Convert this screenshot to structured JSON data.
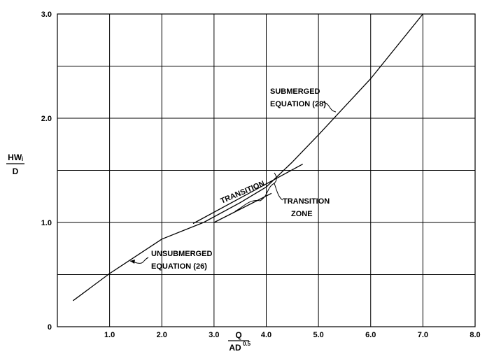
{
  "chart_data": {
    "type": "line",
    "xlim": [
      0,
      8
    ],
    "ylim": [
      0,
      3
    ],
    "grid": true,
    "x_ticks": [
      "1.0",
      "2.0",
      "3.0",
      "4.0",
      "5.0",
      "6.0",
      "7.0",
      "8.0"
    ],
    "y_ticks": [
      "0",
      "1.0",
      "2.0",
      "3.0"
    ],
    "xlabel": {
      "numerator": "Q",
      "denominator": "AD",
      "exponent": "0.5"
    },
    "ylabel": {
      "numerator": "HWᵢ",
      "denominator": "D"
    },
    "series": [
      {
        "x": [
          0.3,
          1.0,
          2.0,
          2.8,
          3.5,
          4.0,
          4.5,
          5.0,
          6.0,
          7.0
        ],
        "y": [
          0.25,
          0.51,
          0.84,
          1.0,
          1.19,
          1.34,
          1.58,
          1.84,
          2.38,
          3.0
        ]
      },
      {
        "x": [
          2.6,
          4.7
        ],
        "y": [
          0.99,
          1.56
        ]
      },
      {
        "x": [
          3.0,
          4.1
        ],
        "y": [
          1.0,
          1.28
        ]
      }
    ],
    "annotations": {
      "transition": "TRANSITION",
      "submerged": [
        "SUBMERGED",
        "EQUATION (28)"
      ],
      "transition_zone": [
        "TRANSITION",
        "ZONE"
      ],
      "unsubmerged": [
        "UNSUBMERGED",
        "EQUATION (26)"
      ]
    }
  }
}
